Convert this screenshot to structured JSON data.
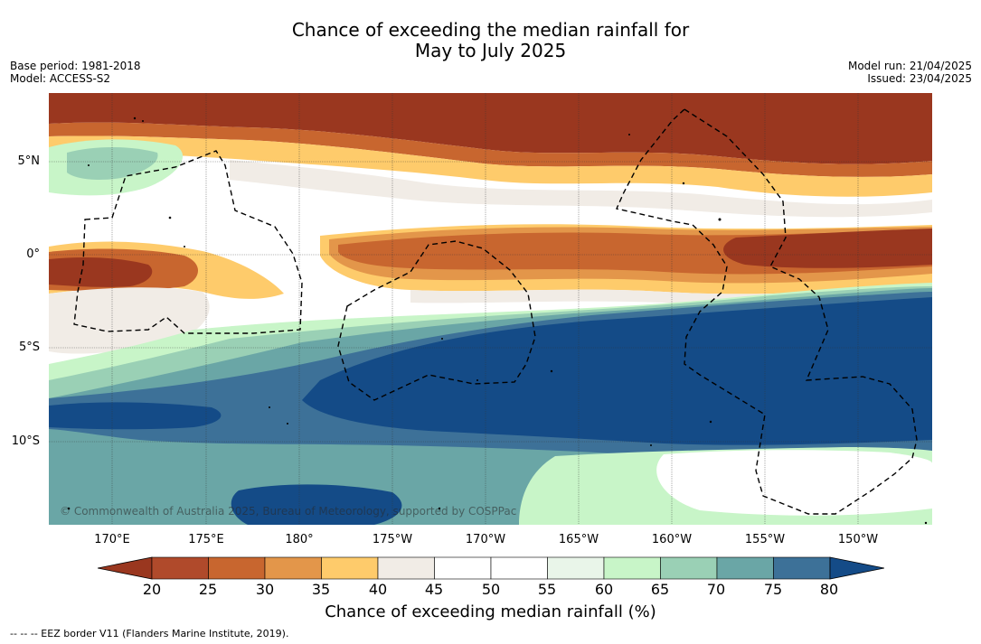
{
  "title": {
    "line1": "Chance of exceeding the median rainfall for",
    "line2": "May to July 2025"
  },
  "meta_left": {
    "base_period": "Base period: 1981-2018",
    "model": "Model: ACCESS-S2"
  },
  "meta_right": {
    "model_run": "Model run: 21/04/2025",
    "issued": "Issued: 23/04/2025"
  },
  "map": {
    "watermark": "© Commonwealth of Australia 2025, Bureau of Meteorology, supported by COSPPac",
    "lat_labels": [
      "5°N",
      "0°",
      "5°S",
      "10°S"
    ],
    "lon_labels": [
      "170°E",
      "175°E",
      "180°",
      "175°W",
      "170°W",
      "165°W",
      "160°W",
      "155°W",
      "150°W"
    ],
    "gridlines": true,
    "eez_border_style": "dashed"
  },
  "colorbar": {
    "ticks": [
      "20",
      "25",
      "30",
      "35",
      "40",
      "45",
      "50",
      "55",
      "60",
      "65",
      "70",
      "75",
      "80"
    ],
    "colors": [
      "#9a371f",
      "#b04a2b",
      "#c8662f",
      "#e3964a",
      "#fecb6b",
      "#f1ece6",
      "#ffffff",
      "#ffffff",
      "#e9f5e9",
      "#c8f5c8",
      "#9ad0b5",
      "#6aa6a6",
      "#3d7198",
      "#144b87"
    ],
    "label": "Chance of exceeding median rainfall (%)"
  },
  "footnote": "--  --  -- EEZ border V11 (Flanders Marine Institute, 2019)."
}
